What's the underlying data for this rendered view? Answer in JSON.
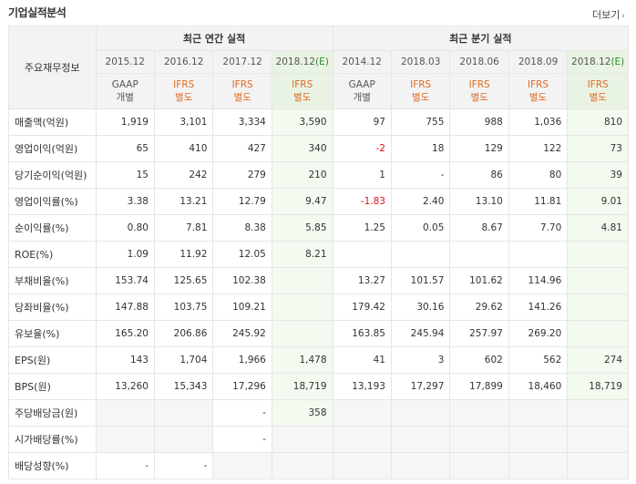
{
  "header": {
    "title": "기업실적분석",
    "more_label": "더보기",
    "more_arrow": "›"
  },
  "table": {
    "row_header_label": "주요재무정보",
    "groups": {
      "annual": "최근 연간 실적",
      "quarterly": "최근 분기 실적"
    },
    "periods": [
      {
        "label": "2015.12",
        "estimate": false,
        "std1": "GAAP",
        "std2": "개별",
        "std_type": "gaap"
      },
      {
        "label": "2016.12",
        "estimate": false,
        "std1": "IFRS",
        "std2": "별도",
        "std_type": "ifrs"
      },
      {
        "label": "2017.12",
        "estimate": false,
        "std1": "IFRS",
        "std2": "별도",
        "std_type": "ifrs"
      },
      {
        "label": "2018.12",
        "estimate_mark": "(E)",
        "estimate": true,
        "std1": "IFRS",
        "std2": "별도",
        "std_type": "ifrs"
      },
      {
        "label": "2014.12",
        "estimate": false,
        "std1": "GAAP",
        "std2": "개별",
        "std_type": "gaap"
      },
      {
        "label": "2018.03",
        "estimate": false,
        "std1": "IFRS",
        "std2": "별도",
        "std_type": "ifrs"
      },
      {
        "label": "2018.06",
        "estimate": false,
        "std1": "IFRS",
        "std2": "별도",
        "std_type": "ifrs"
      },
      {
        "label": "2018.09",
        "estimate": false,
        "std1": "IFRS",
        "std2": "별도",
        "std_type": "ifrs"
      },
      {
        "label": "2018.12",
        "estimate_mark": "(E)",
        "estimate": true,
        "std1": "IFRS",
        "std2": "별도",
        "std_type": "ifrs"
      }
    ],
    "rows": [
      {
        "label": "매출액(억원)",
        "values": [
          "1,919",
          "3,101",
          "3,334",
          "3,590",
          "97",
          "755",
          "988",
          "1,036",
          "810"
        ],
        "group_start": true
      },
      {
        "label": "영업이익(억원)",
        "values": [
          "65",
          "410",
          "427",
          "340",
          "-2",
          "18",
          "129",
          "122",
          "73"
        ]
      },
      {
        "label": "당기순이익(억원)",
        "values": [
          "15",
          "242",
          "279",
          "210",
          "1",
          "-",
          "86",
          "80",
          "39"
        ]
      },
      {
        "label": "영업이익률(%)",
        "values": [
          "3.38",
          "13.21",
          "12.79",
          "9.47",
          "-1.83",
          "2.40",
          "13.10",
          "11.81",
          "9.01"
        ],
        "group_start": true
      },
      {
        "label": "순이익률(%)",
        "values": [
          "0.80",
          "7.81",
          "8.38",
          "5.85",
          "1.25",
          "0.05",
          "8.67",
          "7.70",
          "4.81"
        ]
      },
      {
        "label": "ROE(%)",
        "values": [
          "1.09",
          "11.92",
          "12.05",
          "8.21",
          "",
          "",
          "",
          "",
          ""
        ]
      },
      {
        "label": "부채비율(%)",
        "values": [
          "153.74",
          "125.65",
          "102.38",
          "",
          "13.27",
          "101.57",
          "101.62",
          "114.96",
          ""
        ],
        "group_start": true
      },
      {
        "label": "당좌비율(%)",
        "values": [
          "147.88",
          "103.75",
          "109.21",
          "",
          "179.42",
          "30.16",
          "29.62",
          "141.26",
          ""
        ]
      },
      {
        "label": "유보율(%)",
        "values": [
          "165.20",
          "206.86",
          "245.92",
          "",
          "163.85",
          "245.94",
          "257.97",
          "269.20",
          ""
        ]
      },
      {
        "label": "EPS(원)",
        "values": [
          "143",
          "1,704",
          "1,966",
          "1,478",
          "41",
          "3",
          "602",
          "562",
          "274"
        ],
        "group_start": true
      },
      {
        "label": "BPS(원)",
        "values": [
          "13,260",
          "15,343",
          "17,296",
          "18,719",
          "13,193",
          "17,297",
          "17,899",
          "18,460",
          "18,719"
        ]
      },
      {
        "label": "주당배당금(원)",
        "values": [
          "",
          "",
          "-",
          "358",
          "",
          "",
          "",
          "",
          ""
        ],
        "group_start": true,
        "grey": true
      },
      {
        "label": "시가배당률(%)",
        "values": [
          "",
          "",
          "-",
          "",
          "",
          "",
          "",
          "",
          ""
        ],
        "grey": true
      },
      {
        "label": "배당성향(%)",
        "values": [
          "-",
          "-",
          "",
          "",
          "",
          "",
          "",
          "",
          ""
        ],
        "grey": true
      }
    ]
  },
  "colors": {
    "negative": "#d81616",
    "ifrs": "#e06a22",
    "estimate_bg": "#f3faf0"
  }
}
